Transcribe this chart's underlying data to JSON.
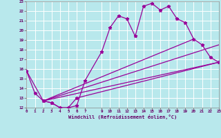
{
  "xlabel": "Windchill (Refroidissement éolien,°C)",
  "background_color": "#b8e8ec",
  "grid_color": "#ffffff",
  "line_color": "#990099",
  "ylim": [
    12,
    23
  ],
  "xlim": [
    0,
    23
  ],
  "ytick_vals": [
    12,
    13,
    14,
    15,
    16,
    17,
    18,
    19,
    20,
    21,
    22,
    23
  ],
  "xtick_vals": [
    0,
    1,
    2,
    3,
    4,
    5,
    6,
    7,
    9,
    10,
    11,
    12,
    13,
    14,
    15,
    16,
    17,
    18,
    19,
    20,
    21,
    22,
    23
  ],
  "main_x": [
    0,
    1,
    2,
    3,
    4,
    5,
    6,
    7,
    9,
    10,
    11,
    12,
    13,
    14,
    15,
    16,
    17,
    18,
    19,
    20,
    21,
    22,
    23
  ],
  "main_y": [
    15.8,
    13.5,
    12.7,
    12.5,
    12.0,
    12.0,
    12.2,
    14.8,
    17.8,
    20.3,
    21.5,
    21.2,
    19.4,
    22.5,
    22.8,
    22.1,
    22.5,
    21.2,
    20.8,
    19.1,
    18.5,
    17.2,
    16.7
  ],
  "line1_x": [
    2,
    23
  ],
  "line1_y": [
    12.7,
    16.7
  ],
  "line2_x": [
    2,
    23
  ],
  "line2_y": [
    12.7,
    18.5
  ],
  "line3_x": [
    2,
    20
  ],
  "line3_y": [
    12.7,
    19.1
  ],
  "bot_x": [
    0,
    2,
    3,
    4,
    5,
    6,
    23
  ],
  "bot_y": [
    15.8,
    12.7,
    12.5,
    12.0,
    12.0,
    13.0,
    16.7
  ]
}
